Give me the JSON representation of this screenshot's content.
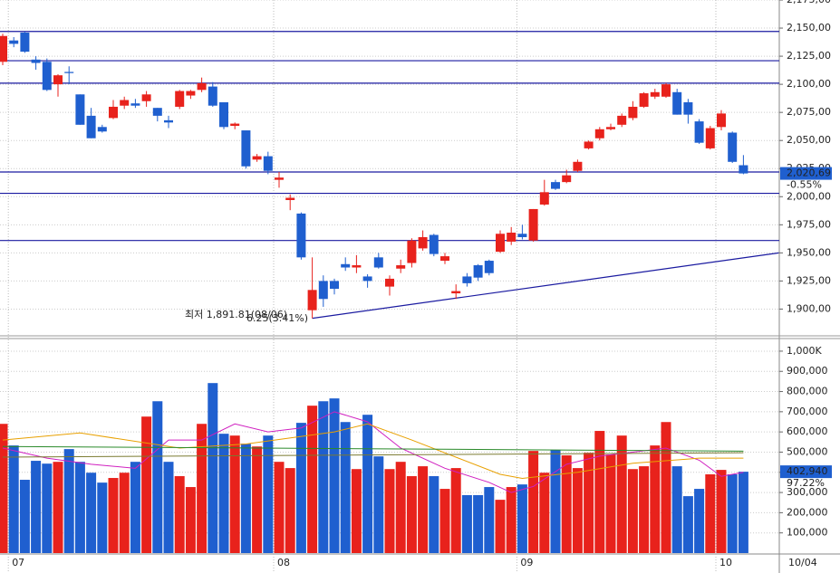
{
  "chart_data": {
    "type": "candlestick",
    "up_color": "#e8221c",
    "down_color": "#1f5fcf",
    "open": [
      2120,
      2139,
      2146,
      2122,
      2120,
      2100,
      2111,
      2091,
      2072,
      2062,
      2070,
      2081,
      2083,
      2085,
      2079,
      2068,
      2080,
      2090,
      2095,
      2098,
      2084,
      2063,
      2059,
      2033,
      2036,
      2015,
      1997,
      1985,
      1899,
      1925,
      1925,
      1940,
      1937,
      1929,
      1946,
      1920,
      1936,
      1941,
      1954,
      1966,
      1943,
      1914,
      1929,
      1939,
      1943,
      1951,
      1960,
      1967,
      1961,
      1993,
      2013,
      2013,
      2023,
      2043,
      2052,
      2060,
      2064,
      2070,
      2080,
      2089,
      2089,
      2093,
      2084,
      2067,
      2043,
      2062,
      2057,
      2028
    ],
    "high": [
      2145,
      2142,
      2147,
      2125,
      2123,
      2109,
      2116,
      2091,
      2079,
      2064,
      2086,
      2089,
      2087,
      2094,
      2079,
      2072,
      2095,
      2095,
      2106,
      2102,
      2084,
      2066,
      2059,
      2038,
      2040,
      2022,
      2002,
      1986,
      1946,
      1930,
      1927,
      1946,
      1948,
      1931,
      1950,
      1930,
      1944,
      1963,
      1970,
      1967,
      1950,
      1922,
      1932,
      1940,
      1944,
      1970,
      1973,
      1975,
      1989,
      2015,
      2015,
      2024,
      2033,
      2050,
      2062,
      2065,
      2074,
      2085,
      2093,
      2096,
      2101,
      2096,
      2087,
      2069,
      2063,
      2077,
      2058,
      2037
    ],
    "low": [
      2117,
      2133,
      2128,
      2113,
      2094,
      2089,
      2100,
      2064,
      2052,
      2057,
      2069,
      2078,
      2079,
      2080,
      2067,
      2061,
      2078,
      2087,
      2093,
      2080,
      2060,
      2060,
      2025,
      2031,
      2020,
      2008,
      1988,
      1944,
      1891.81,
      1902,
      1913,
      1934,
      1932,
      1919,
      1936,
      1912,
      1932,
      1937,
      1952,
      1947,
      1940,
      1909,
      1920,
      1925,
      1930,
      1950,
      1957,
      1962,
      1960,
      1992,
      2006,
      2012,
      2022,
      2042,
      2050,
      2059,
      2062,
      2068,
      2079,
      2087,
      2088,
      2073,
      2065,
      2047,
      2042,
      2059,
      2030,
      2020
    ],
    "close": [
      2143,
      2136,
      2129,
      2119,
      2095,
      2108,
      2110,
      2064,
      2052,
      2058,
      2080,
      2086,
      2081,
      2091,
      2072,
      2066,
      2094,
      2094,
      2101,
      2081,
      2062,
      2065,
      2027,
      2036,
      2023,
      2017,
      1999,
      1946,
      1917,
      1909,
      1918,
      1937,
      1939,
      1925,
      1937,
      1927,
      1939,
      1961,
      1964,
      1949,
      1947,
      1916,
      1923,
      1928,
      1932,
      1967,
      1968,
      1964,
      1989,
      2004,
      2007,
      2019,
      2031,
      2049,
      2060,
      2062,
      2072,
      2080,
      2092,
      2093,
      2100,
      2073,
      2073,
      2048,
      2061,
      2074,
      2031,
      2020.69
    ],
    "ylim": [
      1877,
      2175
    ],
    "yticks": [
      {
        "value": 1900,
        "label": "1,900,00"
      },
      {
        "value": 1925,
        "label": "1,925,00"
      },
      {
        "value": 1950,
        "label": "1,950,00"
      },
      {
        "value": 1975,
        "label": "1,975,00"
      },
      {
        "value": 2000,
        "label": "2,000,00"
      },
      {
        "value": 2025,
        "label": "2,025,00"
      },
      {
        "value": 2050,
        "label": "2,050,00"
      },
      {
        "value": 2075,
        "label": "2,075,00"
      },
      {
        "value": 2100,
        "label": "2,100,00"
      },
      {
        "value": 2125,
        "label": "2,125,00"
      },
      {
        "value": 2150,
        "label": "2,150,00"
      },
      {
        "value": 2175,
        "label": "2,175,00"
      }
    ],
    "grid": true,
    "x_labels": [
      {
        "index": 1,
        "label": "07"
      },
      {
        "index": 25,
        "label": "08"
      },
      {
        "index": 47,
        "label": "09"
      },
      {
        "index": 65,
        "label": "10"
      }
    ],
    "date": "10/04",
    "hlines": [
      2147,
      2121,
      2101,
      2022,
      2003,
      1961
    ],
    "hline_color": "#1a1aa0",
    "trendline": {
      "x": [
        28,
        70.2
      ],
      "y": [
        1891.81,
        1950
      ]
    },
    "low_note": "최저 1,891.81(08/06)",
    "change_note": "6.25(3.41%)",
    "last_price": {
      "value": 2020.69,
      "label": "2,020,69"
    },
    "last_change": "-0.55%",
    "volume": {
      "values": [
        640000,
        533000,
        363000,
        457000,
        443000,
        452000,
        515000,
        452000,
        398000,
        349000,
        372000,
        398000,
        452000,
        676000,
        752000,
        452000,
        381000,
        327000,
        640000,
        842000,
        591000,
        582000,
        542000,
        528000,
        582000,
        452000,
        421000,
        645000,
        730000,
        752000,
        766000,
        649000,
        416000,
        685000,
        479000,
        416000,
        452000,
        381000,
        430000,
        381000,
        318000,
        421000,
        287000,
        287000,
        327000,
        264000,
        327000,
        340000,
        506000,
        398000,
        511000,
        484000,
        421000,
        497000,
        605000,
        488000,
        582000,
        416000,
        430000,
        533000,
        649000,
        430000,
        282000,
        318000,
        390000,
        412000,
        390000,
        402940
      ],
      "ylim": [
        0,
        1058000
      ],
      "yticks": [
        {
          "value": 100000,
          "label": "100,000"
        },
        {
          "value": 200000,
          "label": "200,000"
        },
        {
          "value": 300000,
          "label": "300,000"
        },
        {
          "value": 400000,
          "label": "400,000"
        },
        {
          "value": 500000,
          "label": "500,000"
        },
        {
          "value": 600000,
          "label": "600,000"
        },
        {
          "value": 700000,
          "label": "700,000"
        },
        {
          "value": 800000,
          "label": "800,000"
        },
        {
          "value": 900000,
          "label": "900,000"
        },
        {
          "value": 1000000,
          "label": "1,000K"
        }
      ],
      "last": {
        "value": 402940,
        "label": "402,940"
      },
      "last_ratio": "97.22%",
      "averages": [
        {
          "color": "#d020c0",
          "x": [
            0,
            4,
            8,
            12,
            15,
            18,
            21,
            24,
            27,
            30,
            33,
            36,
            40,
            44,
            46,
            48,
            51,
            54,
            57,
            60,
            63,
            65,
            67
          ],
          "values": [
            520000,
            470000,
            440000,
            420000,
            560000,
            560000,
            640000,
            600000,
            620000,
            700000,
            650000,
            520000,
            420000,
            350000,
            300000,
            330000,
            440000,
            480000,
            500000,
            520000,
            460000,
            380000,
            400000
          ]
        },
        {
          "color": "#e8a000",
          "x": [
            0,
            7,
            16,
            22,
            30,
            33,
            37,
            45,
            47,
            52,
            57,
            63,
            67
          ],
          "values": [
            560000,
            595000,
            520000,
            540000,
            600000,
            640000,
            560000,
            390000,
            370000,
            400000,
            445000,
            470000,
            470000
          ]
        },
        {
          "color": "#2a8a2a",
          "x": [
            0,
            67
          ],
          "values": [
            528000,
            505000
          ]
        },
        {
          "color": "#7a7a30",
          "x": [
            0,
            67
          ],
          "values": [
            475000,
            497000
          ]
        }
      ]
    }
  }
}
